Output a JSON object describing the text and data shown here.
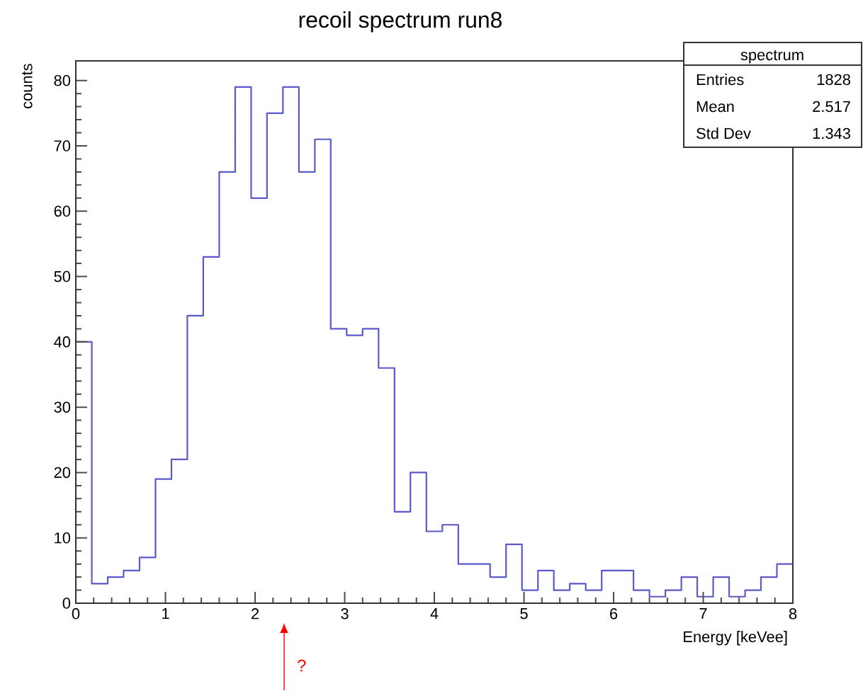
{
  "chart_data": {
    "type": "histogram",
    "title": "recoil spectrum  run8",
    "xlabel": "Energy [keVee]",
    "ylabel": "counts",
    "color": "#5a5acc",
    "bins": [
      0,
      0.178,
      0.356,
      0.533,
      0.711,
      0.889,
      1.067,
      1.244,
      1.422,
      1.6,
      1.778,
      1.956,
      2.133,
      2.311,
      2.489,
      2.667,
      2.844,
      3.022,
      3.2,
      3.378,
      3.556,
      3.733,
      3.911,
      4.089,
      4.267,
      4.444,
      4.622,
      4.8,
      4.978,
      5.156,
      5.333,
      5.511,
      5.689,
      5.867,
      6.044,
      6.222,
      6.4,
      6.578,
      6.756,
      6.933,
      7.111,
      7.289,
      7.467,
      7.644,
      7.822,
      8
    ],
    "values": [
      40,
      3,
      4,
      5,
      7,
      19,
      22,
      44,
      53,
      66,
      79,
      62,
      75,
      79,
      66,
      71,
      42,
      41,
      42,
      36,
      14,
      20,
      11,
      12,
      6,
      6,
      4,
      9,
      2,
      5,
      2,
      3,
      2,
      5,
      5,
      2,
      1,
      2,
      4,
      1,
      4,
      1,
      2,
      4,
      6
    ],
    "xlim": [
      0,
      8
    ],
    "ylim": [
      0,
      83
    ],
    "xticks": [
      0,
      1,
      2,
      3,
      4,
      5,
      6,
      7,
      8
    ],
    "yticks": [
      0,
      10,
      20,
      30,
      40,
      50,
      60,
      70,
      80
    ],
    "annotations": [
      "spectrum",
      "Entries",
      "1828",
      "Mean",
      "2.517",
      "Std Dev",
      "1.343",
      "?"
    ]
  }
}
